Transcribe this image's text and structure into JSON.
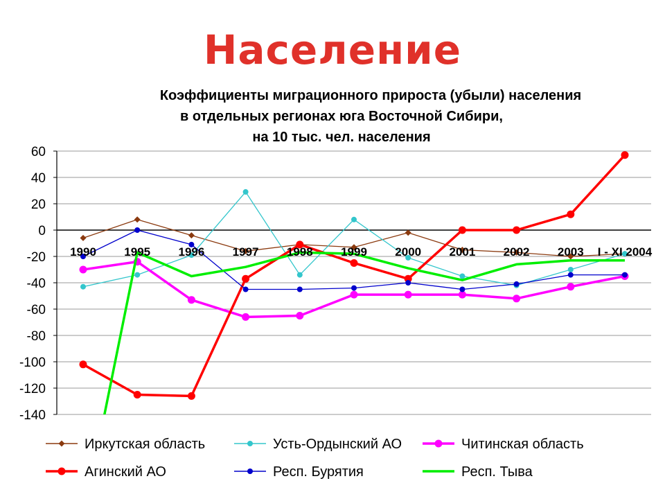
{
  "slide": {
    "title": "Население"
  },
  "chart_data": {
    "type": "line",
    "title_lines": [
      "Коэффициенты миграционного прироста (убыли) населения",
      "в отдельных регионах юга Восточной Сибири,",
      "на 10 тыс. чел. населения"
    ],
    "categories": [
      "1990",
      "1995",
      "1996",
      "1997",
      "1998",
      "1999",
      "2000",
      "2001",
      "2002",
      "2003",
      "I - XI 2004"
    ],
    "ylim": [
      -140,
      60
    ],
    "yticks": [
      60,
      40,
      20,
      0,
      -20,
      -40,
      -60,
      -80,
      -100,
      -120,
      -140
    ],
    "grid": true,
    "legend_position": "bottom",
    "series": [
      {
        "name": "Иркутская область",
        "color": "#8b3a0f",
        "marker": "diamond",
        "values": [
          -6,
          8,
          -4,
          -16,
          -11,
          -13,
          -2,
          -15,
          -17,
          -20,
          -18
        ]
      },
      {
        "name": "Усть-Ордынский АО",
        "color": "#33c6cc",
        "marker": "circle",
        "values": [
          -43,
          -34,
          -19,
          29,
          -34,
          8,
          -21,
          -35,
          -42,
          -30,
          -18
        ]
      },
      {
        "name": "Читинская область",
        "color": "#ff00ff",
        "marker": "circle",
        "values": [
          -30,
          -24,
          -53,
          -66,
          -65,
          -49,
          -49,
          -49,
          -52,
          -43,
          -35
        ]
      },
      {
        "name": "Агинский АО",
        "color": "#ff0000",
        "marker": "circle",
        "values": [
          -102,
          -125,
          -126,
          -37,
          -11,
          -25,
          -37,
          0,
          0,
          12,
          57
        ]
      },
      {
        "name": "Респ. Бурятия",
        "color": "#0000cc",
        "marker": "circle",
        "values": [
          -20,
          0,
          -11,
          -45,
          -45,
          -44,
          -40,
          -45,
          -41,
          -34,
          -34
        ]
      },
      {
        "name": "Респ. Тыва",
        "color": "#00ee00",
        "marker": "none",
        "values": [
          -220,
          -17,
          -35,
          -28,
          -17,
          -18,
          -29,
          -38,
          -26,
          -23,
          -23
        ]
      }
    ]
  }
}
